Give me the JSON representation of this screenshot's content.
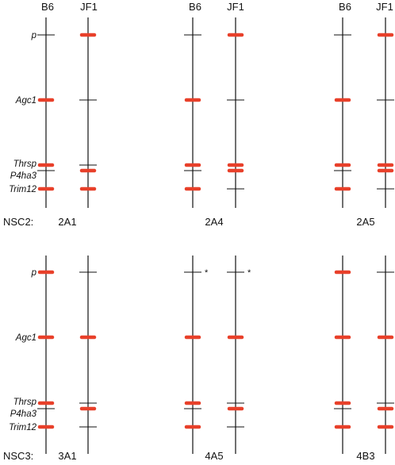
{
  "colors": {
    "line": "#111111",
    "allele_mark": "#e8402a",
    "background": "#ffffff"
  },
  "strain_labels": [
    "B6",
    "JF1"
  ],
  "genes": [
    "p",
    "Agc1",
    "Thrsp",
    "P4ha3",
    "Trim12"
  ],
  "asterisk": "*",
  "rows": [
    {
      "prefix": "NSC2:",
      "clones": [
        {
          "name": "2A1",
          "red_marks": {
            "B6": [
              "Agc1",
              "Thrsp",
              "Trim12"
            ],
            "JF1": [
              "p",
              "P4ha3",
              "Trim12"
            ]
          },
          "asterisk_genes": []
        },
        {
          "name": "2A4",
          "red_marks": {
            "B6": [
              "Agc1",
              "Thrsp",
              "Trim12"
            ],
            "JF1": [
              "p",
              "Thrsp",
              "P4ha3"
            ]
          },
          "asterisk_genes": []
        },
        {
          "name": "2A5",
          "red_marks": {
            "B6": [
              "Agc1",
              "Thrsp",
              "Trim12"
            ],
            "JF1": [
              "p",
              "Thrsp",
              "P4ha3"
            ]
          },
          "asterisk_genes": []
        }
      ]
    },
    {
      "prefix": "NSC3:",
      "clones": [
        {
          "name": "3A1",
          "red_marks": {
            "B6": [
              "p",
              "Agc1",
              "Thrsp",
              "Trim12"
            ],
            "JF1": [
              "Agc1",
              "P4ha3"
            ]
          },
          "asterisk_genes": []
        },
        {
          "name": "4A5",
          "red_marks": {
            "B6": [
              "Agc1",
              "Thrsp",
              "Trim12"
            ],
            "JF1": [
              "Agc1",
              "P4ha3"
            ]
          },
          "asterisk_genes": [
            "p"
          ]
        },
        {
          "name": "4B3",
          "red_marks": {
            "B6": [
              "p",
              "Agc1",
              "Thrsp",
              "Trim12"
            ],
            "JF1": [
              "Agc1",
              "P4ha3",
              "Trim12"
            ]
          },
          "asterisk_genes": []
        }
      ]
    }
  ]
}
